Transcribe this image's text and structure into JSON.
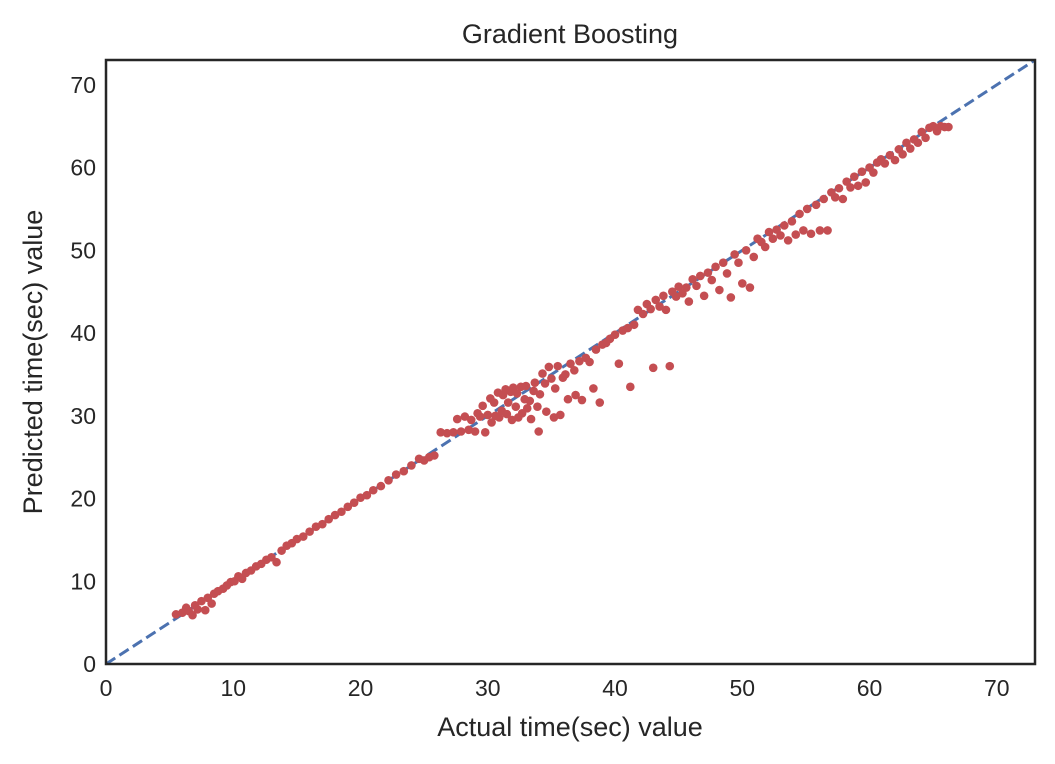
{
  "chart_data": {
    "type": "scatter",
    "title": "Gradient Boosting",
    "xlabel": "Actual time(sec) value",
    "ylabel": "Predicted time(sec) value",
    "xlim": [
      0,
      73
    ],
    "ylim": [
      0,
      73
    ],
    "xticks": [
      0,
      10,
      20,
      30,
      40,
      50,
      60,
      70
    ],
    "yticks": [
      0,
      10,
      20,
      30,
      40,
      50,
      60,
      70
    ],
    "xtick_labels": [
      "0",
      "10",
      "20",
      "30",
      "40",
      "50",
      "60",
      "70"
    ],
    "ytick_labels": [
      "0",
      "10",
      "20",
      "30",
      "40",
      "50",
      "60",
      "70"
    ],
    "grid": false,
    "reference_line": {
      "style": "dashed",
      "from": [
        0,
        0
      ],
      "to": [
        73,
        73
      ],
      "color": "#4c72b0"
    },
    "point_color": "#c44e52",
    "series": [
      {
        "points": [
          [
            5.5,
            6.0
          ],
          [
            6.0,
            6.2
          ],
          [
            6.3,
            6.8
          ],
          [
            6.5,
            6.4
          ],
          [
            6.8,
            5.9
          ],
          [
            7.0,
            7.1
          ],
          [
            7.2,
            6.6
          ],
          [
            7.5,
            7.6
          ],
          [
            7.8,
            6.5
          ],
          [
            8.0,
            8.0
          ],
          [
            8.3,
            7.3
          ],
          [
            8.5,
            8.5
          ],
          [
            8.8,
            8.8
          ],
          [
            9.2,
            9.1
          ],
          [
            9.5,
            9.5
          ],
          [
            9.8,
            9.9
          ],
          [
            10.1,
            10.0
          ],
          [
            10.4,
            10.6
          ],
          [
            10.7,
            10.3
          ],
          [
            11.0,
            11.0
          ],
          [
            11.4,
            11.3
          ],
          [
            11.8,
            11.8
          ],
          [
            12.2,
            12.1
          ],
          [
            12.6,
            12.6
          ],
          [
            13.0,
            12.9
          ],
          [
            13.4,
            12.3
          ],
          [
            13.8,
            13.7
          ],
          [
            14.2,
            14.3
          ],
          [
            14.6,
            14.6
          ],
          [
            15.0,
            15.1
          ],
          [
            15.5,
            15.4
          ],
          [
            16.0,
            16.0
          ],
          [
            16.5,
            16.6
          ],
          [
            17.0,
            16.9
          ],
          [
            17.5,
            17.5
          ],
          [
            18.0,
            18.0
          ],
          [
            18.5,
            18.4
          ],
          [
            19.0,
            19.0
          ],
          [
            19.5,
            19.5
          ],
          [
            20.0,
            20.1
          ],
          [
            20.5,
            20.4
          ],
          [
            21.0,
            21.0
          ],
          [
            21.6,
            21.5
          ],
          [
            22.2,
            22.2
          ],
          [
            22.8,
            22.9
          ],
          [
            23.4,
            23.3
          ],
          [
            24.0,
            24.0
          ],
          [
            24.6,
            24.8
          ],
          [
            25.0,
            24.6
          ],
          [
            25.4,
            25.0
          ],
          [
            25.8,
            25.2
          ],
          [
            26.3,
            28.0
          ],
          [
            26.8,
            27.9
          ],
          [
            27.3,
            28.0
          ],
          [
            27.6,
            29.6
          ],
          [
            27.9,
            28.1
          ],
          [
            28.2,
            29.9
          ],
          [
            28.5,
            28.3
          ],
          [
            28.7,
            29.5
          ],
          [
            29.0,
            28.1
          ],
          [
            29.2,
            30.3
          ],
          [
            29.4,
            29.9
          ],
          [
            29.6,
            31.2
          ],
          [
            29.8,
            28.0
          ],
          [
            30.0,
            30.1
          ],
          [
            30.2,
            32.1
          ],
          [
            30.3,
            29.2
          ],
          [
            30.5,
            31.6
          ],
          [
            30.6,
            30.0
          ],
          [
            30.8,
            32.8
          ],
          [
            30.9,
            29.8
          ],
          [
            31.1,
            30.6
          ],
          [
            31.2,
            32.5
          ],
          [
            31.4,
            33.2
          ],
          [
            31.5,
            30.2
          ],
          [
            31.6,
            31.6
          ],
          [
            31.8,
            32.9
          ],
          [
            31.9,
            29.5
          ],
          [
            32.0,
            33.4
          ],
          [
            32.2,
            31.1
          ],
          [
            32.3,
            32.7
          ],
          [
            32.4,
            29.8
          ],
          [
            32.6,
            33.5
          ],
          [
            32.7,
            30.3
          ],
          [
            32.9,
            32.0
          ],
          [
            33.0,
            33.6
          ],
          [
            33.1,
            30.9
          ],
          [
            33.3,
            31.8
          ],
          [
            33.4,
            29.6
          ],
          [
            33.6,
            33.0
          ],
          [
            33.7,
            34.0
          ],
          [
            33.9,
            31.1
          ],
          [
            34.0,
            28.1
          ],
          [
            34.1,
            32.6
          ],
          [
            34.3,
            35.1
          ],
          [
            34.5,
            33.9
          ],
          [
            34.6,
            30.5
          ],
          [
            34.8,
            35.9
          ],
          [
            35.0,
            34.5
          ],
          [
            35.2,
            29.8
          ],
          [
            35.3,
            33.3
          ],
          [
            35.5,
            36.0
          ],
          [
            35.7,
            30.1
          ],
          [
            35.9,
            34.6
          ],
          [
            36.1,
            35.0
          ],
          [
            36.3,
            32.0
          ],
          [
            36.5,
            36.3
          ],
          [
            36.8,
            35.5
          ],
          [
            36.9,
            32.5
          ],
          [
            37.2,
            36.6
          ],
          [
            37.4,
            31.9
          ],
          [
            37.7,
            37.0
          ],
          [
            38.0,
            36.5
          ],
          [
            38.3,
            33.3
          ],
          [
            38.5,
            38.0
          ],
          [
            38.8,
            31.6
          ],
          [
            39.0,
            38.6
          ],
          [
            39.3,
            38.8
          ],
          [
            39.6,
            39.3
          ],
          [
            40.0,
            39.8
          ],
          [
            40.3,
            36.3
          ],
          [
            40.6,
            40.3
          ],
          [
            41.0,
            40.6
          ],
          [
            41.2,
            33.5
          ],
          [
            41.5,
            41.0
          ],
          [
            41.8,
            42.8
          ],
          [
            42.2,
            42.3
          ],
          [
            42.5,
            43.5
          ],
          [
            42.8,
            42.9
          ],
          [
            43.0,
            35.8
          ],
          [
            43.2,
            44.0
          ],
          [
            43.5,
            43.2
          ],
          [
            43.8,
            44.5
          ],
          [
            44.0,
            42.8
          ],
          [
            44.3,
            36.0
          ],
          [
            44.5,
            45.0
          ],
          [
            44.8,
            44.4
          ],
          [
            45.0,
            45.6
          ],
          [
            45.3,
            44.8
          ],
          [
            45.6,
            45.5
          ],
          [
            45.8,
            43.8
          ],
          [
            46.1,
            46.5
          ],
          [
            46.4,
            45.7
          ],
          [
            46.7,
            46.9
          ],
          [
            47.0,
            44.5
          ],
          [
            47.3,
            47.3
          ],
          [
            47.6,
            46.4
          ],
          [
            47.9,
            48.0
          ],
          [
            48.2,
            45.2
          ],
          [
            48.5,
            48.5
          ],
          [
            48.8,
            47.2
          ],
          [
            49.1,
            44.3
          ],
          [
            49.4,
            49.5
          ],
          [
            49.7,
            48.5
          ],
          [
            50.0,
            46.0
          ],
          [
            50.3,
            50.0
          ],
          [
            50.6,
            45.5
          ],
          [
            50.9,
            49.2
          ],
          [
            51.2,
            51.4
          ],
          [
            51.5,
            51.0
          ],
          [
            51.8,
            50.4
          ],
          [
            52.1,
            52.2
          ],
          [
            52.4,
            51.4
          ],
          [
            52.7,
            52.5
          ],
          [
            53.0,
            51.8
          ],
          [
            53.3,
            53.0
          ],
          [
            53.6,
            51.2
          ],
          [
            53.9,
            53.5
          ],
          [
            54.2,
            51.9
          ],
          [
            54.5,
            54.4
          ],
          [
            54.8,
            52.4
          ],
          [
            55.1,
            55.0
          ],
          [
            55.4,
            52.0
          ],
          [
            55.8,
            55.5
          ],
          [
            56.1,
            52.4
          ],
          [
            56.4,
            56.2
          ],
          [
            56.7,
            52.4
          ],
          [
            57.0,
            57.0
          ],
          [
            57.3,
            56.4
          ],
          [
            57.6,
            57.5
          ],
          [
            57.9,
            56.2
          ],
          [
            58.2,
            58.3
          ],
          [
            58.5,
            57.6
          ],
          [
            58.8,
            58.9
          ],
          [
            59.1,
            57.8
          ],
          [
            59.4,
            59.5
          ],
          [
            59.7,
            58.2
          ],
          [
            60.0,
            60.0
          ],
          [
            60.3,
            59.4
          ],
          [
            60.6,
            60.6
          ],
          [
            60.9,
            61.0
          ],
          [
            61.2,
            60.5
          ],
          [
            61.6,
            61.5
          ],
          [
            62.0,
            60.9
          ],
          [
            62.3,
            62.2
          ],
          [
            62.6,
            61.6
          ],
          [
            62.9,
            63.0
          ],
          [
            63.2,
            62.3
          ],
          [
            63.5,
            63.4
          ],
          [
            63.8,
            63.0
          ],
          [
            64.1,
            64.3
          ],
          [
            64.4,
            63.6
          ],
          [
            64.7,
            64.8
          ],
          [
            65.0,
            65.0
          ],
          [
            65.3,
            64.4
          ],
          [
            65.6,
            65.0
          ],
          [
            65.9,
            64.9
          ],
          [
            66.2,
            64.9
          ]
        ]
      }
    ]
  }
}
